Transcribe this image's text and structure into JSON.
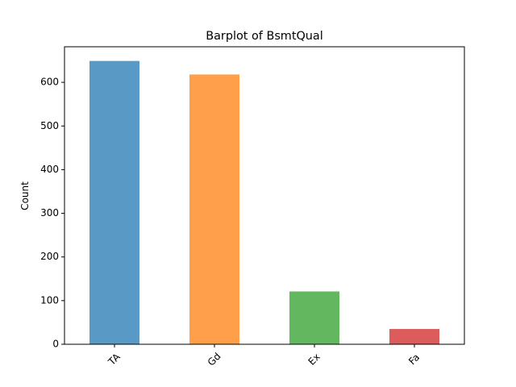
{
  "chart_data": {
    "type": "bar",
    "title": "Barplot of BsmtQual",
    "xlabel": "",
    "ylabel": "Count",
    "categories": [
      "TA",
      "Gd",
      "Ex",
      "Fa"
    ],
    "values": [
      649,
      618,
      121,
      35
    ],
    "colors": [
      "#5899c6",
      "#ff9f4a",
      "#63b75f",
      "#dc5c5c"
    ],
    "ylim": [
      0,
      681.5
    ],
    "yticks": [
      0,
      100,
      200,
      300,
      400,
      500,
      600
    ],
    "grid": false,
    "legend": "none",
    "xtick_rotation": -45
  }
}
